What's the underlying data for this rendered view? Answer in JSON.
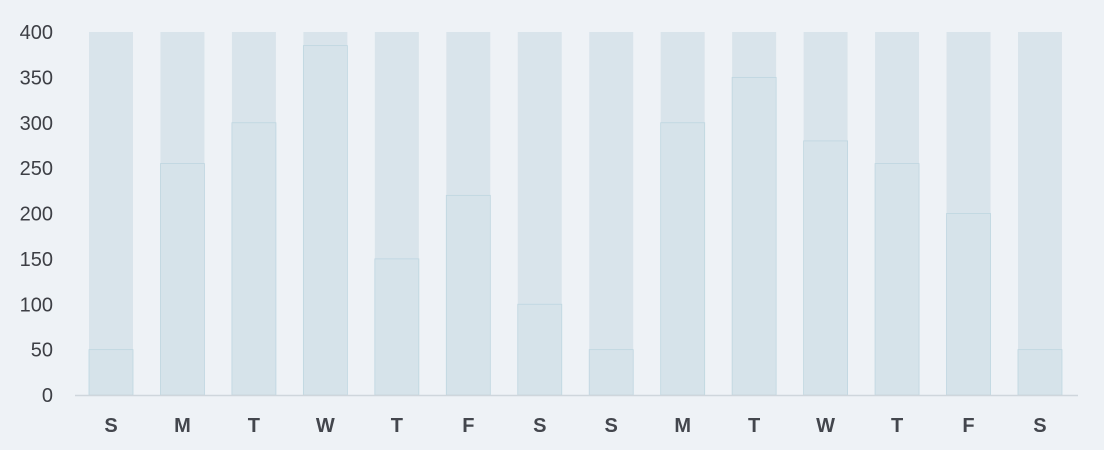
{
  "chart_data": {
    "type": "bar",
    "categories": [
      "S",
      "M",
      "T",
      "W",
      "T",
      "F",
      "S",
      "S",
      "M",
      "T",
      "W",
      "T",
      "F",
      "S"
    ],
    "series": [
      {
        "values": [
          50,
          255,
          300,
          385,
          150,
          220,
          100,
          50,
          300,
          350,
          280,
          255,
          200,
          50
        ]
      }
    ],
    "background_max": 400,
    "ylim": [
      0,
      400
    ],
    "yticks": [
      0,
      50,
      100,
      150,
      200,
      250,
      300,
      350,
      400
    ],
    "grid": false,
    "legend": "none",
    "title": "",
    "xlabel": "",
    "ylabel": ""
  },
  "colors": {
    "background": "#eef2f6",
    "track": "#d9e4eb",
    "bar": "#d6e3ea",
    "bar_top": "#bed6e0",
    "axis": "#cfd6dc",
    "tick_text": "#3d3f45",
    "category_text": "#43464d"
  }
}
